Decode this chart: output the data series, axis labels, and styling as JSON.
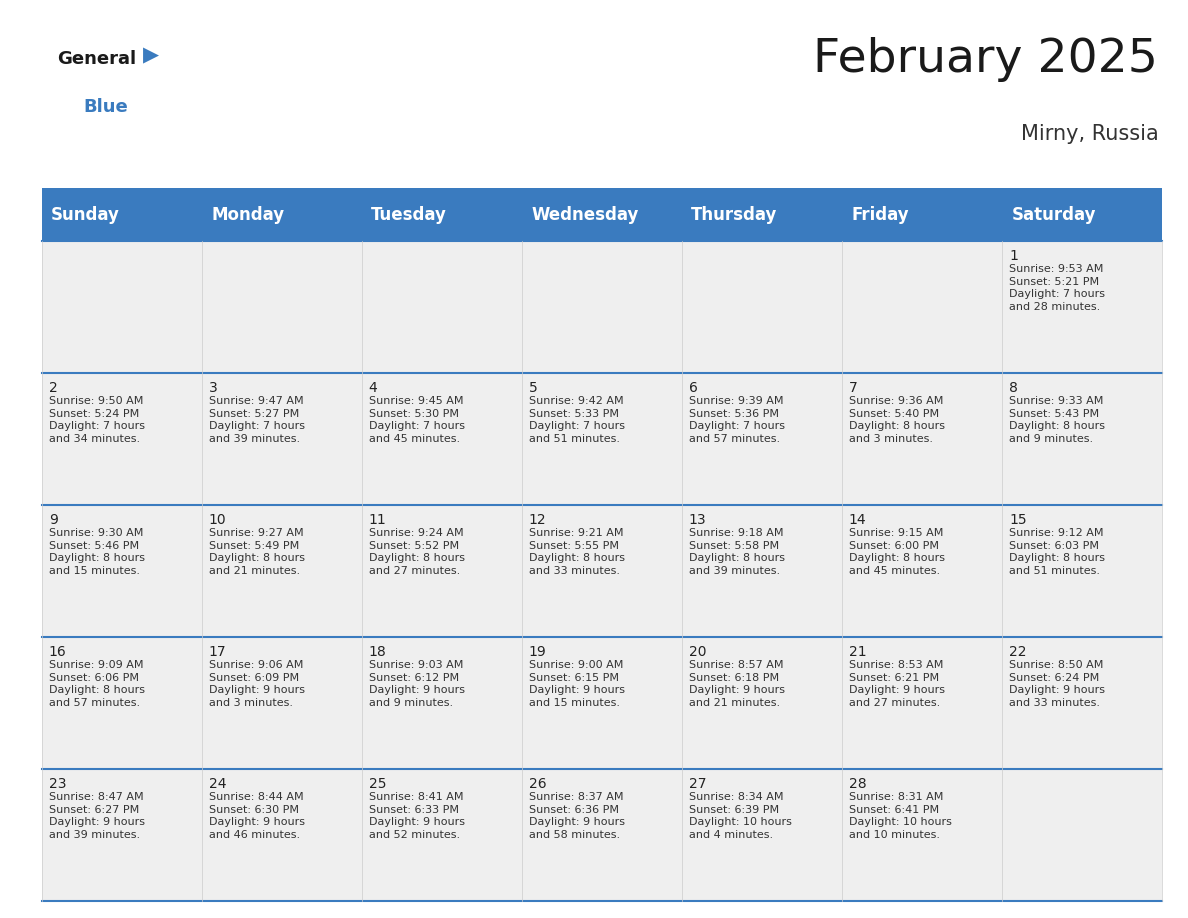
{
  "title": "February 2025",
  "subtitle": "Mirny, Russia",
  "header_color": "#3a7bbf",
  "header_text_color": "#ffffff",
  "cell_bg_color": "#efefef",
  "border_color": "#3a7bbf",
  "grid_color": "#cccccc",
  "text_color": "#333333",
  "day_num_color": "#222222",
  "day_names": [
    "Sunday",
    "Monday",
    "Tuesday",
    "Wednesday",
    "Thursday",
    "Friday",
    "Saturday"
  ],
  "title_fontsize": 34,
  "subtitle_fontsize": 15,
  "header_fontsize": 12,
  "day_num_fontsize": 10,
  "cell_fontsize": 8.0,
  "days": [
    {
      "day": 1,
      "col": 6,
      "row": 0,
      "sunrise": "9:53 AM",
      "sunset": "5:21 PM",
      "daylight": "7 hours and 28 minutes."
    },
    {
      "day": 2,
      "col": 0,
      "row": 1,
      "sunrise": "9:50 AM",
      "sunset": "5:24 PM",
      "daylight": "7 hours and 34 minutes."
    },
    {
      "day": 3,
      "col": 1,
      "row": 1,
      "sunrise": "9:47 AM",
      "sunset": "5:27 PM",
      "daylight": "7 hours and 39 minutes."
    },
    {
      "day": 4,
      "col": 2,
      "row": 1,
      "sunrise": "9:45 AM",
      "sunset": "5:30 PM",
      "daylight": "7 hours and 45 minutes."
    },
    {
      "day": 5,
      "col": 3,
      "row": 1,
      "sunrise": "9:42 AM",
      "sunset": "5:33 PM",
      "daylight": "7 hours and 51 minutes."
    },
    {
      "day": 6,
      "col": 4,
      "row": 1,
      "sunrise": "9:39 AM",
      "sunset": "5:36 PM",
      "daylight": "7 hours and 57 minutes."
    },
    {
      "day": 7,
      "col": 5,
      "row": 1,
      "sunrise": "9:36 AM",
      "sunset": "5:40 PM",
      "daylight": "8 hours and 3 minutes."
    },
    {
      "day": 8,
      "col": 6,
      "row": 1,
      "sunrise": "9:33 AM",
      "sunset": "5:43 PM",
      "daylight": "8 hours and 9 minutes."
    },
    {
      "day": 9,
      "col": 0,
      "row": 2,
      "sunrise": "9:30 AM",
      "sunset": "5:46 PM",
      "daylight": "8 hours and 15 minutes."
    },
    {
      "day": 10,
      "col": 1,
      "row": 2,
      "sunrise": "9:27 AM",
      "sunset": "5:49 PM",
      "daylight": "8 hours and 21 minutes."
    },
    {
      "day": 11,
      "col": 2,
      "row": 2,
      "sunrise": "9:24 AM",
      "sunset": "5:52 PM",
      "daylight": "8 hours and 27 minutes."
    },
    {
      "day": 12,
      "col": 3,
      "row": 2,
      "sunrise": "9:21 AM",
      "sunset": "5:55 PM",
      "daylight": "8 hours and 33 minutes."
    },
    {
      "day": 13,
      "col": 4,
      "row": 2,
      "sunrise": "9:18 AM",
      "sunset": "5:58 PM",
      "daylight": "8 hours and 39 minutes."
    },
    {
      "day": 14,
      "col": 5,
      "row": 2,
      "sunrise": "9:15 AM",
      "sunset": "6:00 PM",
      "daylight": "8 hours and 45 minutes."
    },
    {
      "day": 15,
      "col": 6,
      "row": 2,
      "sunrise": "9:12 AM",
      "sunset": "6:03 PM",
      "daylight": "8 hours and 51 minutes."
    },
    {
      "day": 16,
      "col": 0,
      "row": 3,
      "sunrise": "9:09 AM",
      "sunset": "6:06 PM",
      "daylight": "8 hours and 57 minutes."
    },
    {
      "day": 17,
      "col": 1,
      "row": 3,
      "sunrise": "9:06 AM",
      "sunset": "6:09 PM",
      "daylight": "9 hours and 3 minutes."
    },
    {
      "day": 18,
      "col": 2,
      "row": 3,
      "sunrise": "9:03 AM",
      "sunset": "6:12 PM",
      "daylight": "9 hours and 9 minutes."
    },
    {
      "day": 19,
      "col": 3,
      "row": 3,
      "sunrise": "9:00 AM",
      "sunset": "6:15 PM",
      "daylight": "9 hours and 15 minutes."
    },
    {
      "day": 20,
      "col": 4,
      "row": 3,
      "sunrise": "8:57 AM",
      "sunset": "6:18 PM",
      "daylight": "9 hours and 21 minutes."
    },
    {
      "day": 21,
      "col": 5,
      "row": 3,
      "sunrise": "8:53 AM",
      "sunset": "6:21 PM",
      "daylight": "9 hours and 27 minutes."
    },
    {
      "day": 22,
      "col": 6,
      "row": 3,
      "sunrise": "8:50 AM",
      "sunset": "6:24 PM",
      "daylight": "9 hours and 33 minutes."
    },
    {
      "day": 23,
      "col": 0,
      "row": 4,
      "sunrise": "8:47 AM",
      "sunset": "6:27 PM",
      "daylight": "9 hours and 39 minutes."
    },
    {
      "day": 24,
      "col": 1,
      "row": 4,
      "sunrise": "8:44 AM",
      "sunset": "6:30 PM",
      "daylight": "9 hours and 46 minutes."
    },
    {
      "day": 25,
      "col": 2,
      "row": 4,
      "sunrise": "8:41 AM",
      "sunset": "6:33 PM",
      "daylight": "9 hours and 52 minutes."
    },
    {
      "day": 26,
      "col": 3,
      "row": 4,
      "sunrise": "8:37 AM",
      "sunset": "6:36 PM",
      "daylight": "9 hours and 58 minutes."
    },
    {
      "day": 27,
      "col": 4,
      "row": 4,
      "sunrise": "8:34 AM",
      "sunset": "6:39 PM",
      "daylight": "10 hours and 4 minutes."
    },
    {
      "day": 28,
      "col": 5,
      "row": 4,
      "sunrise": "8:31 AM",
      "sunset": "6:41 PM",
      "daylight": "10 hours and 10 minutes."
    }
  ],
  "num_rows": 5,
  "num_cols": 7,
  "logo_general_color": "#1a1a1a",
  "logo_blue_color": "#3a7bbf",
  "logo_triangle_color": "#3a7bbf"
}
